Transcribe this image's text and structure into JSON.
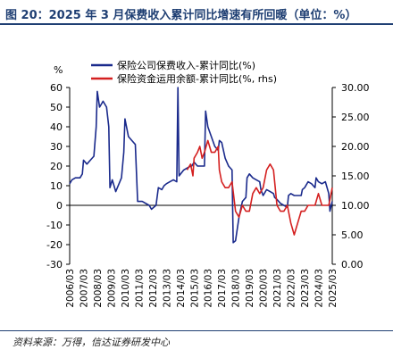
{
  "title": "图 20：2025 年 3 月保费收入累计同比增速有所回暖（单位：%）",
  "source": "资料来源：万得，信达证券研发中心",
  "chart_data": {
    "type": "line",
    "left_axis_unit": "%",
    "ylim_left": [
      -30,
      60
    ],
    "ylim_right": [
      0,
      30
    ],
    "left_ticks": [
      -30,
      -20,
      -10,
      0,
      10,
      20,
      30,
      40,
      50,
      60
    ],
    "right_ticks": [
      "0.00",
      "5.00",
      "10.00",
      "15.00",
      "20.00",
      "25.00",
      "30.00"
    ],
    "x_ticks": [
      "2006/03",
      "2007/03",
      "2008/03",
      "2009/03",
      "2010/03",
      "2011/03",
      "2012/03",
      "2013/03",
      "2014/03",
      "2015/03",
      "2016/03",
      "2017/03",
      "2018/03",
      "2019/03",
      "2020/03",
      "2021/03",
      "2022/03",
      "2023/03",
      "2024/03",
      "2025/03"
    ],
    "legend_position": "top",
    "series": [
      {
        "name": "保险公司保费收入-累计同比(%)",
        "axis": "left",
        "color": "#1a2a8c",
        "points": [
          [
            "2006/03",
            11
          ],
          [
            "2006/05",
            13
          ],
          [
            "2006/08",
            14
          ],
          [
            "2006/12",
            14
          ],
          [
            "2007/02",
            16
          ],
          [
            "2007/03",
            23
          ],
          [
            "2007/06",
            21
          ],
          [
            "2007/09",
            23
          ],
          [
            "2007/12",
            25
          ],
          [
            "2008/02",
            40
          ],
          [
            "2008/03",
            58
          ],
          [
            "2008/05",
            50
          ],
          [
            "2008/08",
            53
          ],
          [
            "2008/11",
            50
          ],
          [
            "2009/01",
            40
          ],
          [
            "2009/02",
            9
          ],
          [
            "2009/04",
            13
          ],
          [
            "2009/07",
            7
          ],
          [
            "2009/12",
            14
          ],
          [
            "2010/02",
            27
          ],
          [
            "2010/03",
            44
          ],
          [
            "2010/06",
            35
          ],
          [
            "2010/09",
            33
          ],
          [
            "2010/12",
            31
          ],
          [
            "2011/02",
            2
          ],
          [
            "2011/06",
            2
          ],
          [
            "2011/12",
            0
          ],
          [
            "2012/02",
            -2
          ],
          [
            "2012/06",
            0
          ],
          [
            "2012/08",
            9
          ],
          [
            "2012/11",
            8
          ],
          [
            "2013/01",
            10
          ],
          [
            "2013/03",
            11
          ],
          [
            "2013/06",
            12
          ],
          [
            "2013/09",
            13
          ],
          [
            "2013/12",
            12
          ],
          [
            "2014/01",
            60
          ],
          [
            "2014/02",
            15
          ],
          [
            "2014/06",
            18
          ],
          [
            "2014/12",
            20
          ],
          [
            "2015/01",
            20
          ],
          [
            "2015/03",
            22
          ],
          [
            "2015/06",
            20
          ],
          [
            "2015/12",
            20
          ],
          [
            "2016/01",
            48
          ],
          [
            "2016/03",
            40
          ],
          [
            "2016/06",
            35
          ],
          [
            "2016/09",
            30
          ],
          [
            "2016/12",
            28
          ],
          [
            "2017/01",
            33
          ],
          [
            "2017/03",
            32
          ],
          [
            "2017/06",
            24
          ],
          [
            "2017/09",
            20
          ],
          [
            "2017/12",
            18
          ],
          [
            "2018/01",
            -19
          ],
          [
            "2018/03",
            -18
          ],
          [
            "2018/06",
            -6
          ],
          [
            "2018/09",
            2
          ],
          [
            "2018/12",
            4
          ],
          [
            "2019/01",
            14
          ],
          [
            "2019/03",
            16
          ],
          [
            "2019/06",
            14
          ],
          [
            "2019/09",
            13
          ],
          [
            "2019/12",
            12
          ],
          [
            "2020/01",
            8
          ],
          [
            "2020/03",
            5
          ],
          [
            "2020/06",
            8
          ],
          [
            "2020/09",
            7
          ],
          [
            "2020/12",
            6
          ],
          [
            "2021/01",
            4
          ],
          [
            "2021/03",
            3
          ],
          [
            "2021/06",
            1
          ],
          [
            "2021/09",
            0
          ],
          [
            "2021/12",
            -1
          ],
          [
            "2022/01",
            5
          ],
          [
            "2022/03",
            6
          ],
          [
            "2022/06",
            5
          ],
          [
            "2022/09",
            5
          ],
          [
            "2022/12",
            5
          ],
          [
            "2023/01",
            8
          ],
          [
            "2023/03",
            9
          ],
          [
            "2023/06",
            12
          ],
          [
            "2023/09",
            11
          ],
          [
            "2023/12",
            9
          ],
          [
            "2024/01",
            14
          ],
          [
            "2024/03",
            12
          ],
          [
            "2024/06",
            11
          ],
          [
            "2024/09",
            12
          ],
          [
            "2024/12",
            6
          ],
          [
            "2025/01",
            -3
          ],
          [
            "2025/03",
            2
          ]
        ]
      },
      {
        "name": "保险资金运用余额-累计同比(%, rhs)",
        "axis": "right",
        "color": "#d42020",
        "points": [
          [
            "2014/09",
            16
          ],
          [
            "2014/12",
            17
          ],
          [
            "2015/02",
            15
          ],
          [
            "2015/03",
            18
          ],
          [
            "2015/06",
            19
          ],
          [
            "2015/08",
            20
          ],
          [
            "2015/10",
            18
          ],
          [
            "2015/12",
            19
          ],
          [
            "2016/03",
            21
          ],
          [
            "2016/06",
            19
          ],
          [
            "2016/09",
            19
          ],
          [
            "2016/12",
            20
          ],
          [
            "2017/01",
            16
          ],
          [
            "2017/03",
            14
          ],
          [
            "2017/06",
            13
          ],
          [
            "2017/09",
            13
          ],
          [
            "2017/12",
            14
          ],
          [
            "2018/03",
            9
          ],
          [
            "2018/06",
            8
          ],
          [
            "2018/09",
            10
          ],
          [
            "2018/12",
            9
          ],
          [
            "2019/03",
            9
          ],
          [
            "2019/06",
            12
          ],
          [
            "2019/09",
            13
          ],
          [
            "2019/12",
            12
          ],
          [
            "2020/03",
            13
          ],
          [
            "2020/06",
            16
          ],
          [
            "2020/09",
            17
          ],
          [
            "2020/12",
            16
          ],
          [
            "2021/03",
            10
          ],
          [
            "2021/06",
            9
          ],
          [
            "2021/09",
            9
          ],
          [
            "2021/12",
            10
          ],
          [
            "2022/03",
            7
          ],
          [
            "2022/06",
            5
          ],
          [
            "2022/09",
            7
          ],
          [
            "2022/12",
            9
          ],
          [
            "2023/03",
            9
          ],
          [
            "2023/06",
            10
          ],
          [
            "2023/09",
            10
          ],
          [
            "2023/12",
            10
          ],
          [
            "2024/03",
            12
          ],
          [
            "2024/06",
            10
          ],
          [
            "2024/09",
            10
          ],
          [
            "2024/12",
            10
          ],
          [
            "2025/03",
            13
          ]
        ]
      }
    ]
  }
}
